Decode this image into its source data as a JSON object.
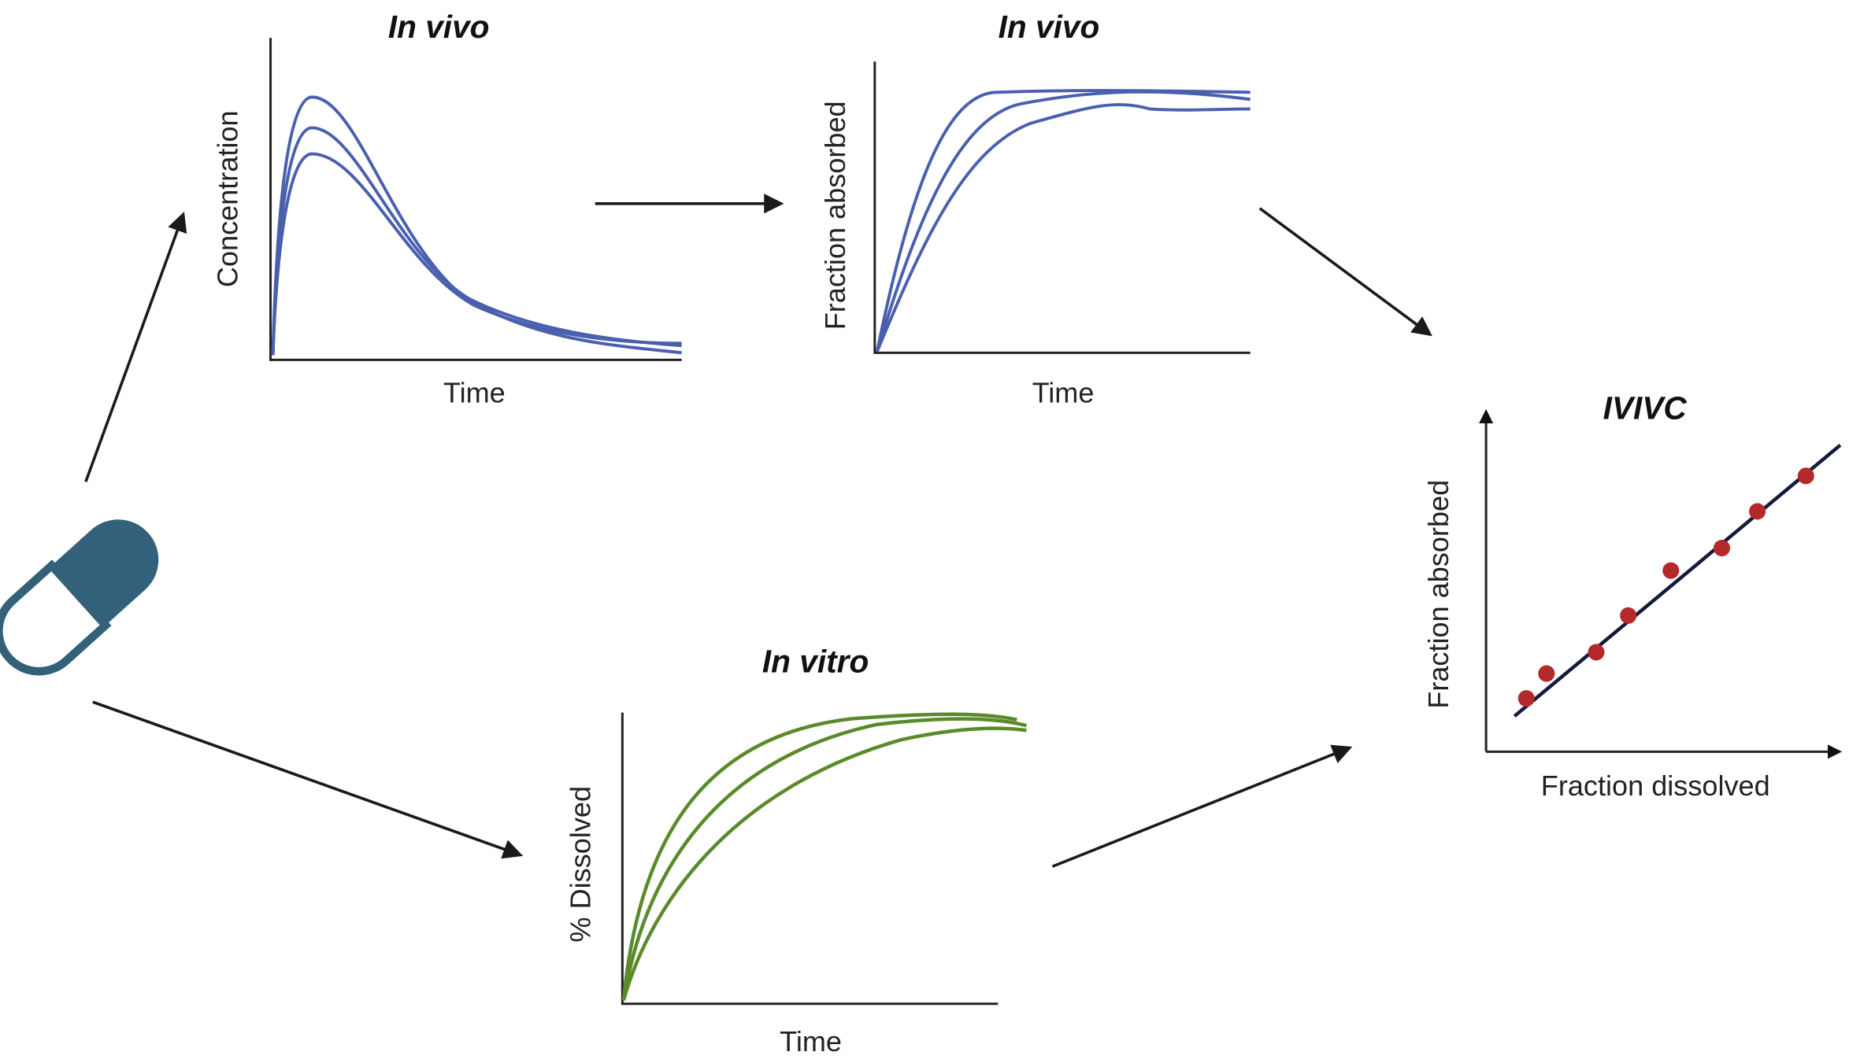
{
  "panels": [
    {
      "title": "In vivo",
      "x_label": "Time",
      "y_label": "Concentration"
    },
    {
      "title": "In vivo",
      "x_label": "Time",
      "y_label": "Fraction absorbed"
    },
    {
      "title": "In vitro",
      "x_label": "Time",
      "y_label": "% Dissolved"
    },
    {
      "title": "IVIVC",
      "x_label": "Fraction dissolved",
      "y_label": "Fraction absorbed"
    }
  ]
}
